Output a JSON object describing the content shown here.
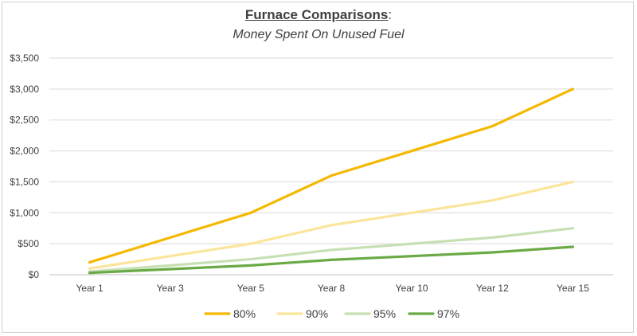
{
  "chart_data": {
    "type": "line",
    "title": "Furnace Comparisons",
    "title_suffix": ":",
    "subtitle": "Money Spent On Unused Fuel",
    "categories": [
      "Year 1",
      "Year 3",
      "Year 5",
      "Year 8",
      "Year 10",
      "Year 12",
      "Year 15"
    ],
    "ylim": [
      0,
      3500
    ],
    "yticks": [
      0,
      500,
      1000,
      1500,
      2000,
      2500,
      3000,
      3500
    ],
    "ytick_labels": [
      "$0",
      "$500",
      "$1,000",
      "$1,500",
      "$2,000",
      "$2,500",
      "$3,000",
      "$3,500"
    ],
    "grid": true,
    "legend": "bottom",
    "series": [
      {
        "name": "80%",
        "color": "#f5b800",
        "values": [
          200,
          600,
          1000,
          1600,
          2000,
          2400,
          3000
        ]
      },
      {
        "name": "90%",
        "color": "#fbe59a",
        "values": [
          100,
          300,
          500,
          800,
          1000,
          1200,
          1500
        ]
      },
      {
        "name": "95%",
        "color": "#c6e0b4",
        "values": [
          50,
          150,
          250,
          400,
          500,
          600,
          750
        ]
      },
      {
        "name": "97%",
        "color": "#6aaa45",
        "values": [
          30,
          90,
          150,
          240,
          300,
          360,
          450
        ]
      }
    ]
  }
}
